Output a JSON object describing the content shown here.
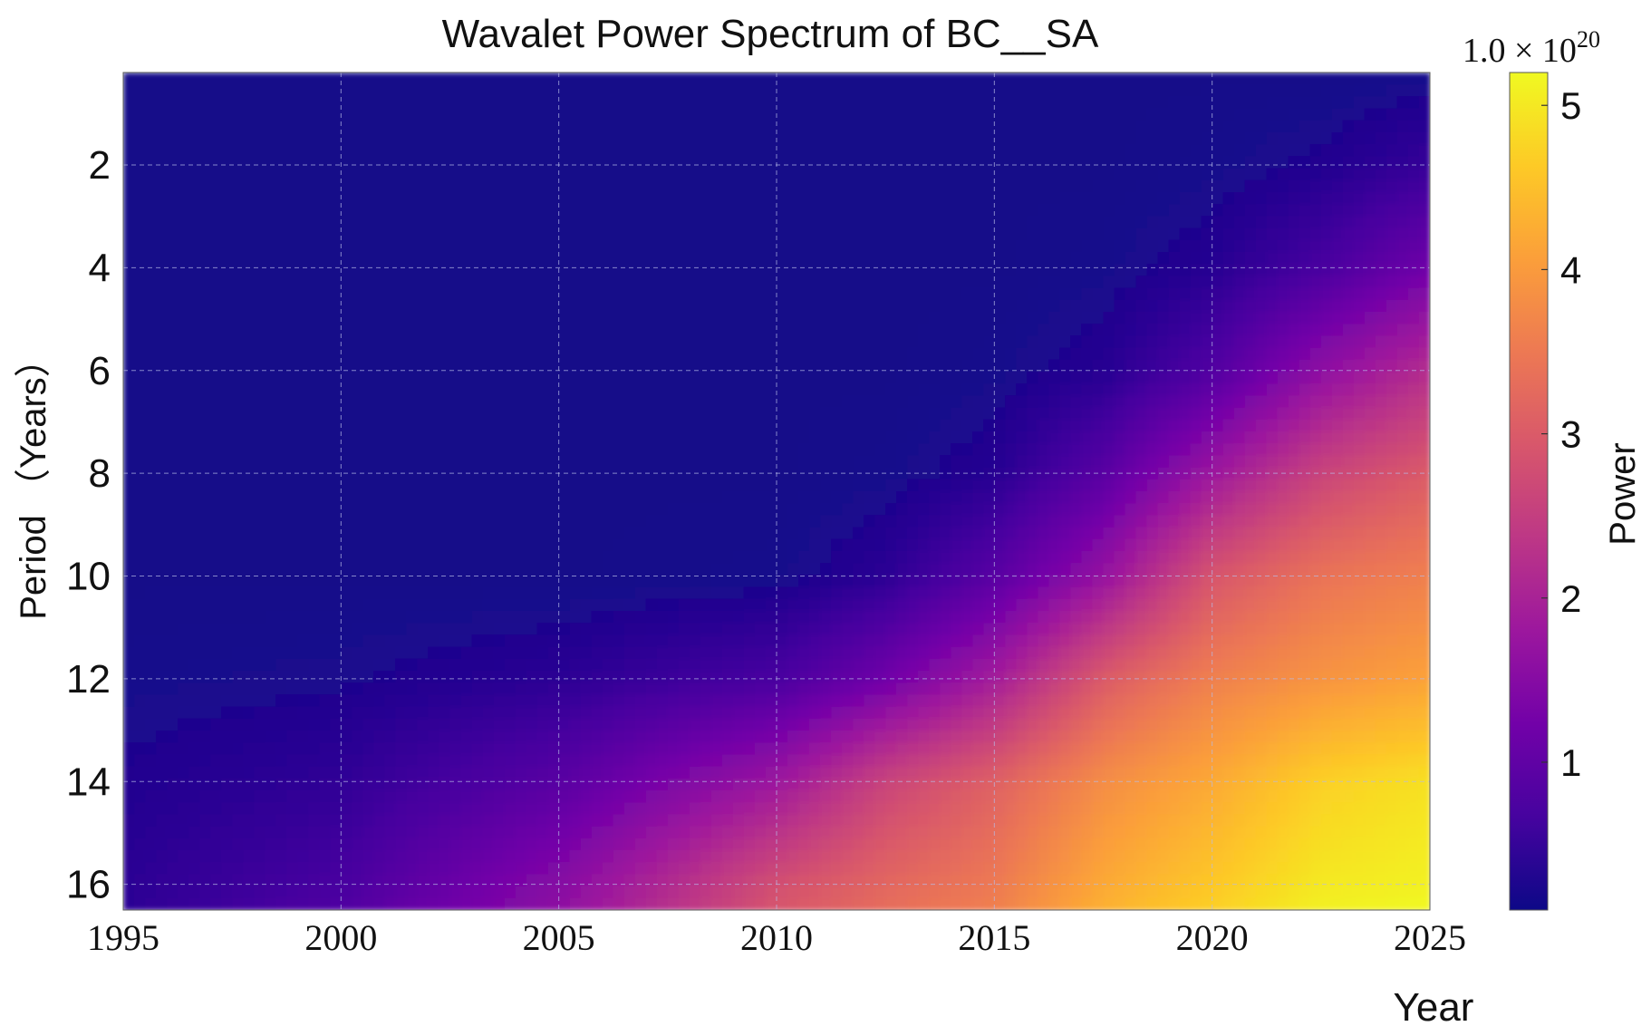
{
  "chart_data": {
    "type": "heatmap",
    "title": "Wavalet Power Spectrum of BC__SA",
    "xlabel": "Year",
    "ylabel": "Period （Years）",
    "xlim": [
      1995,
      2025
    ],
    "ylim": [
      16.5,
      0.2
    ],
    "y_inverted": true,
    "x_ticks": [
      1995,
      2000,
      2005,
      2010,
      2015,
      2020,
      2025
    ],
    "y_ticks": [
      2,
      4,
      6,
      8,
      10,
      12,
      14,
      16
    ],
    "grid": true,
    "colormap": "plasma",
    "colorbar": {
      "label": "Power",
      "scale_text": "1.0 × 10",
      "scale_exponent": "20",
      "ticks": [
        1,
        2,
        3,
        4,
        5
      ],
      "range": [
        0.1,
        5.2
      ]
    },
    "power_grid": {
      "x": [
        1995,
        2000,
        2005,
        2010,
        2012.5,
        2015,
        2017.5,
        2020,
        2022.5,
        2025
      ],
      "y": [
        0.2,
        2,
        4,
        6,
        8,
        10,
        12,
        14,
        16,
        16.5
      ],
      "z": [
        [
          0.15,
          0.15,
          0.15,
          0.15,
          0.15,
          0.15,
          0.15,
          0.15,
          0.15,
          0.2
        ],
        [
          0.15,
          0.15,
          0.15,
          0.15,
          0.15,
          0.15,
          0.15,
          0.2,
          0.3,
          0.5
        ],
        [
          0.15,
          0.15,
          0.15,
          0.15,
          0.15,
          0.15,
          0.2,
          0.35,
          0.7,
          1.2
        ],
        [
          0.15,
          0.15,
          0.15,
          0.15,
          0.15,
          0.2,
          0.35,
          0.8,
          1.6,
          2.2
        ],
        [
          0.15,
          0.15,
          0.15,
          0.15,
          0.2,
          0.35,
          0.9,
          1.8,
          2.6,
          3.0
        ],
        [
          0.15,
          0.15,
          0.15,
          0.2,
          0.4,
          0.9,
          1.7,
          2.9,
          3.4,
          3.6
        ],
        [
          0.2,
          0.25,
          0.4,
          0.7,
          1.2,
          1.9,
          3.0,
          3.6,
          3.9,
          4.1
        ],
        [
          0.3,
          0.45,
          0.9,
          1.8,
          2.6,
          3.1,
          3.8,
          4.2,
          4.7,
          4.9
        ],
        [
          0.4,
          0.7,
          1.5,
          2.8,
          3.2,
          3.5,
          4.2,
          4.6,
          5.0,
          5.1
        ],
        [
          0.4,
          0.8,
          1.6,
          2.9,
          3.3,
          3.6,
          4.3,
          4.7,
          5.1,
          5.2
        ]
      ]
    }
  },
  "colors": {
    "grid": "#b8bce8",
    "frame": "#555555"
  }
}
